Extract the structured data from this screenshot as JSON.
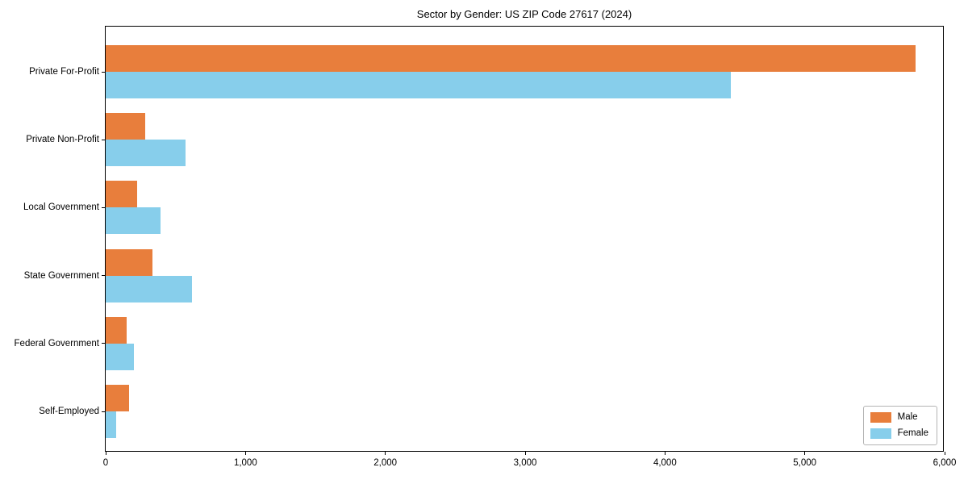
{
  "chart_data": {
    "type": "bar",
    "orientation": "horizontal",
    "title": "Sector by Gender: US ZIP Code 27617 (2024)",
    "categories": [
      "Private For-Profit",
      "Private Non-Profit",
      "Local Government",
      "State Government",
      "Federal Government",
      "Self-Employed"
    ],
    "series": [
      {
        "name": "Male",
        "color": "#e87e3c",
        "values": [
          5790,
          280,
          225,
          335,
          150,
          170
        ]
      },
      {
        "name": "Female",
        "color": "#87ceeb",
        "values": [
          4470,
          570,
          390,
          620,
          200,
          75
        ]
      }
    ],
    "xlim": [
      0,
      6000
    ],
    "x_ticks": [
      0,
      1000,
      2000,
      3000,
      4000,
      5000,
      6000
    ],
    "x_tick_labels": [
      "0",
      "1,000",
      "2,000",
      "3,000",
      "4,000",
      "5,000",
      "6,000"
    ],
    "legend_position": "lower right",
    "grid": false,
    "axis_color": "#000000",
    "background_color": "#ffffff"
  }
}
